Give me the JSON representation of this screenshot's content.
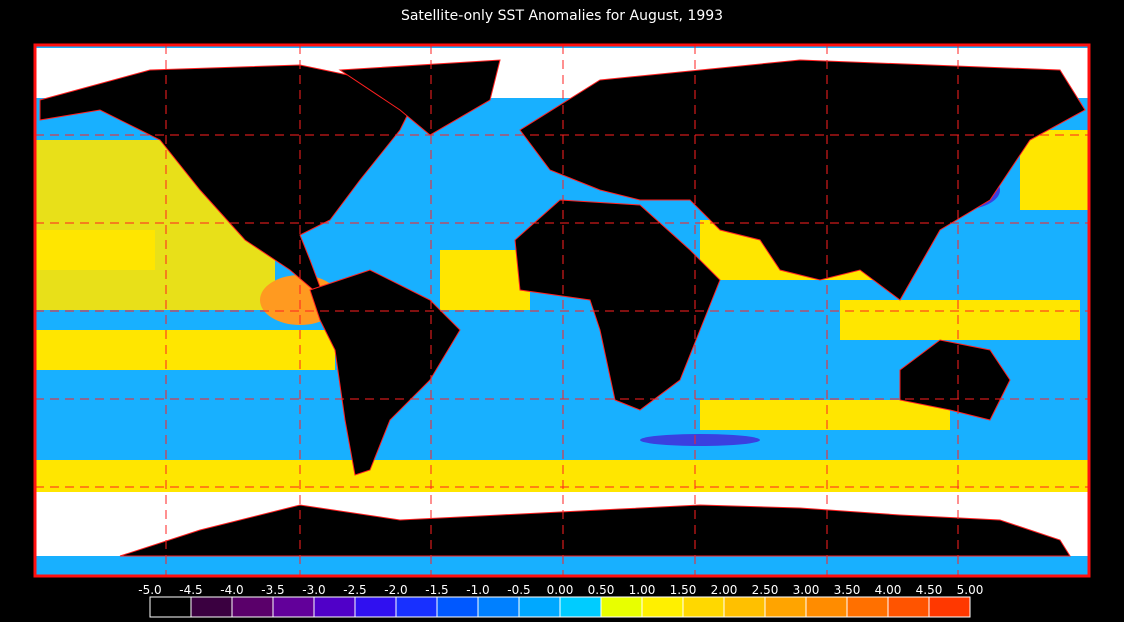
{
  "title": "Satellite-only SST Anomalies for August, 1993",
  "colorbar": {
    "labels": [
      "-5.0",
      "-4.5",
      "-4.0",
      "-3.5",
      "-3.0",
      "-2.5",
      "-2.0",
      "-1.5",
      "-1.0",
      "-0.5",
      "0.00",
      "0.50",
      "1.00",
      "1.50",
      "2.00",
      "2.50",
      "3.00",
      "3.50",
      "4.00",
      "4.50",
      "5.00"
    ],
    "colors": [
      "#000000",
      "#3a0040",
      "#5a006a",
      "#62009a",
      "#5000c8",
      "#3010f0",
      "#1830ff",
      "#0058ff",
      "#0080ff",
      "#00a8ff",
      "#00ccff",
      "#e8ff00",
      "#fff000",
      "#ffd800",
      "#ffc000",
      "#ffa400",
      "#ff8c00",
      "#ff7000",
      "#ff5400",
      "#ff3800",
      "#ff1800"
    ]
  }
}
